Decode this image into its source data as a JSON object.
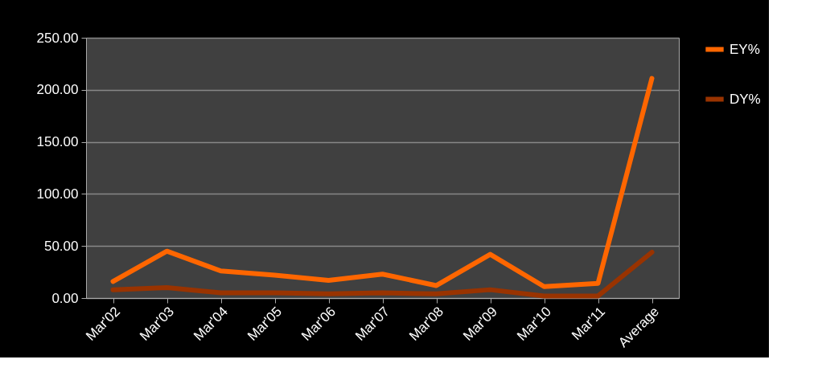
{
  "chart_data": {
    "type": "line",
    "categories": [
      "Mar'02",
      "Mar'03",
      "Mar'04",
      "Mar'05",
      "Mar'06",
      "Mar'07",
      "Mar'08",
      "Mar'09",
      "Mar'10",
      "Mar'11",
      "Average"
    ],
    "series": [
      {
        "name": "EY%",
        "color": "#ff6600",
        "values": [
          16,
          45,
          26,
          22,
          17,
          23,
          12,
          42,
          11,
          14,
          211
        ]
      },
      {
        "name": "DY%",
        "color": "#993300",
        "values": [
          8,
          10,
          5,
          5,
          4,
          5,
          4,
          8,
          2,
          2,
          44
        ]
      }
    ],
    "ylim": [
      0,
      250
    ],
    "yticks": [
      {
        "value": 0,
        "label": "0.00"
      },
      {
        "value": 50,
        "label": "50.00"
      },
      {
        "value": 100,
        "label": "100.00"
      },
      {
        "value": 150,
        "label": "150.00"
      },
      {
        "value": 200,
        "label": "200.00"
      },
      {
        "value": 250,
        "label": "250.00"
      }
    ],
    "grid": "y",
    "legend": "right",
    "marker": "none",
    "line_style": "solid"
  }
}
